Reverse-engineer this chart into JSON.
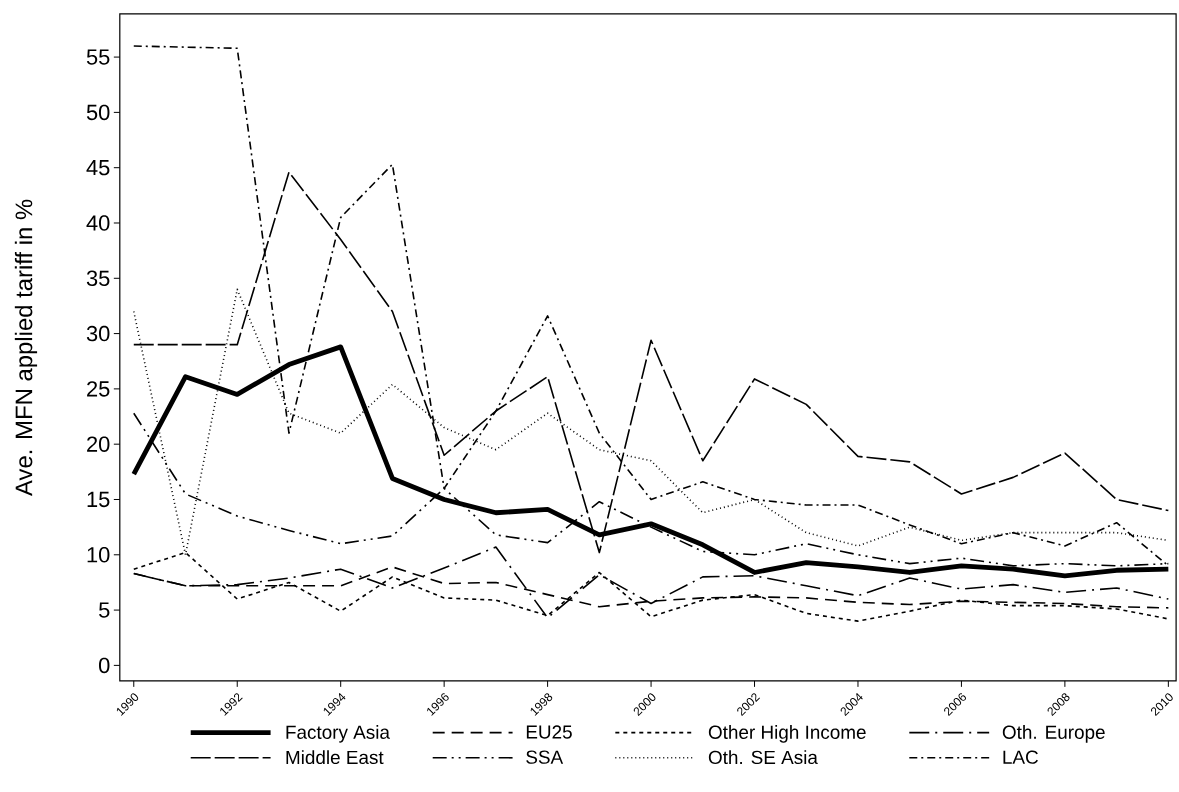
{
  "chart_data": {
    "type": "line",
    "ylabel": "Ave. MFN applied tariff in %",
    "x": [
      1990,
      1991,
      1992,
      1993,
      1994,
      1995,
      1996,
      1997,
      1998,
      1999,
      2000,
      2001,
      2002,
      2003,
      2004,
      2005,
      2006,
      2007,
      2008,
      2009,
      2010
    ],
    "xlim": [
      1989.73,
      2010.15
    ],
    "xticks": [
      1990,
      1992,
      1994,
      1996,
      1998,
      2000,
      2002,
      2004,
      2006,
      2008,
      2010
    ],
    "ylim": [
      -1.4,
      58.9
    ],
    "yticks": [
      0,
      5,
      10,
      15,
      20,
      25,
      30,
      35,
      40,
      45,
      50,
      55
    ],
    "grid": false,
    "legend": "bottom",
    "marker": "none",
    "series": [
      {
        "name": "Factory Asia",
        "color": "#000000",
        "line_style": "solid",
        "values": [
          17.3,
          26.1,
          24.5,
          27.2,
          28.8,
          16.9,
          15.0,
          13.8,
          14.1,
          11.8,
          12.8,
          10.9,
          8.4,
          9.3,
          8.9,
          8.4,
          9.0,
          8.7,
          8.1,
          8.6,
          8.7
        ]
      },
      {
        "name": "EU25",
        "color": "#000000",
        "line_style": "dashed",
        "values": [
          8.3,
          7.2,
          7.2,
          7.2,
          7.2,
          8.9,
          7.4,
          7.5,
          6.4,
          5.3,
          5.8,
          6.1,
          6.2,
          6.1,
          5.7,
          5.5,
          5.8,
          5.7,
          5.6,
          5.3,
          5.2
        ]
      },
      {
        "name": "Other High Income",
        "color": "#000000",
        "line_style": "shortdash",
        "values": [
          8.7,
          10.2,
          6.0,
          7.5,
          4.9,
          8.0,
          6.1,
          5.9,
          4.5,
          8.4,
          4.4,
          5.9,
          6.4,
          4.7,
          4.0,
          4.9,
          5.9,
          5.4,
          5.4,
          5.1,
          4.2
        ]
      },
      {
        "name": "Oth. Europe",
        "color": "#000000",
        "line_style": "longdashdot",
        "values": [
          8.3,
          7.2,
          7.3,
          7.9,
          8.7,
          7.0,
          8.8,
          10.7,
          4.3,
          8.2,
          5.6,
          8.0,
          8.1,
          7.2,
          6.3,
          7.9,
          6.9,
          7.3,
          6.6,
          7.0,
          6.0
        ]
      },
      {
        "name": "Middle East",
        "color": "#000000",
        "line_style": "longdash",
        "values": [
          29.0,
          29.0,
          29.0,
          44.6,
          38.5,
          32.0,
          19.0,
          23.0,
          26.1,
          10.2,
          29.4,
          18.5,
          25.9,
          23.6,
          18.9,
          18.4,
          15.5,
          17.0,
          19.2,
          15.0,
          14.0
        ]
      },
      {
        "name": "SSA",
        "color": "#000000",
        "line_style": "dashdotdot",
        "values": [
          22.8,
          15.5,
          13.5,
          12.2,
          11.0,
          11.7,
          16.0,
          11.8,
          11.1,
          14.8,
          12.5,
          10.3,
          10.0,
          11.0,
          10.0,
          9.2,
          9.7,
          9.0,
          9.2,
          9.0,
          9.2
        ]
      },
      {
        "name": "Oth. SE Asia",
        "color": "#000000",
        "line_style": "dotted",
        "values": [
          32.0,
          10.0,
          34.0,
          22.8,
          21.0,
          25.4,
          21.5,
          19.5,
          22.8,
          19.5,
          18.5,
          13.8,
          15.0,
          12.0,
          10.8,
          12.5,
          11.3,
          12.0,
          12.0,
          12.0,
          11.3
        ]
      },
      {
        "name": "LAC",
        "color": "#000000",
        "line_style": "dashdot",
        "values": [
          56.0,
          55.9,
          55.8,
          21.0,
          40.5,
          45.3,
          16.0,
          23.0,
          31.6,
          21.0,
          15.0,
          16.6,
          15.0,
          14.5,
          14.5,
          12.7,
          11.0,
          12.0,
          10.8,
          12.9,
          9.0
        ]
      }
    ]
  }
}
